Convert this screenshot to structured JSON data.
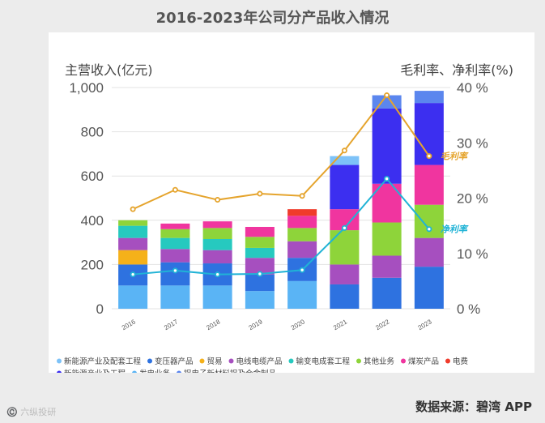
{
  "title": "2016-2023年公司分产品收入情况",
  "source": "数据来源：碧湾 APP",
  "watermark": "©️ 六纵投研",
  "chart_data": {
    "type": "bar",
    "stacked": true,
    "categories": [
      "2016",
      "2017",
      "2018",
      "2019",
      "2020",
      "2021",
      "2022",
      "2023"
    ],
    "left_axis": {
      "label": "主营收入(亿元)",
      "range": [
        0,
        1000
      ],
      "ticks": [
        "0",
        "200",
        "400",
        "600",
        "800",
        "1,000"
      ]
    },
    "right_axis": {
      "label": "毛利率、净利率(%)",
      "range": [
        0,
        40
      ],
      "ticks": [
        "0 %",
        "10 %",
        "20 %",
        "30 %",
        "40 %"
      ]
    },
    "series": [
      {
        "name": "发电业务",
        "color": "#5ab4f5",
        "values": [
          105,
          105,
          105,
          80,
          125,
          0,
          0,
          0
        ]
      },
      {
        "name": "变压器产品",
        "color": "#2e72e0",
        "values": [
          95,
          105,
          100,
          75,
          105,
          110,
          140,
          190
        ]
      },
      {
        "name": "贸易",
        "color": "#f5b11a",
        "values": [
          65,
          0,
          0,
          0,
          0,
          0,
          0,
          0
        ]
      },
      {
        "name": "电线电缆产品",
        "color": "#a64fbf",
        "values": [
          55,
          60,
          60,
          75,
          75,
          90,
          100,
          130
        ]
      },
      {
        "name": "输变电成套工程",
        "color": "#26c9bf",
        "values": [
          55,
          50,
          50,
          45,
          0,
          0,
          0,
          0
        ]
      },
      {
        "name": "其他业务",
        "color": "#8ed43a",
        "values": [
          25,
          40,
          50,
          50,
          60,
          155,
          150,
          150
        ]
      },
      {
        "name": "煤炭产品",
        "color": "#f0359f",
        "values": [
          0,
          25,
          30,
          45,
          55,
          95,
          175,
          180
        ]
      },
      {
        "name": "电费",
        "color": "#f03b2b",
        "values": [
          0,
          0,
          0,
          0,
          30,
          0,
          0,
          0
        ]
      },
      {
        "name": "新能源产业及工程",
        "color": "#3c2ff0",
        "values": [
          0,
          0,
          0,
          0,
          0,
          200,
          340,
          280
        ]
      },
      {
        "name": "新能源产业及配套工程",
        "color": "#7dc2f8",
        "values": [
          0,
          0,
          0,
          0,
          0,
          40,
          0,
          0
        ]
      },
      {
        "name": "铝电子新材料铝及合金制品",
        "color": "#5b86ee",
        "values": [
          0,
          0,
          0,
          0,
          0,
          0,
          60,
          55
        ]
      }
    ],
    "lines": [
      {
        "name": "毛利率",
        "color": "#e5a42d",
        "axis": "right",
        "values": [
          18,
          21.5,
          19.7,
          20.8,
          20.4,
          28.6,
          38.6,
          27.6
        ]
      },
      {
        "name": "净利率",
        "color": "#20b3d6",
        "axis": "right",
        "values": [
          6.2,
          6.9,
          6.2,
          6.3,
          7,
          14.6,
          23.5,
          14.4
        ]
      }
    ],
    "annotations": [
      {
        "text": "毛利率",
        "color": "#e5a42d"
      },
      {
        "text": "净利率",
        "color": "#20b3d6"
      }
    ],
    "legend": {
      "position": "bottom",
      "items": [
        {
          "name": "新能源产业及配套工程",
          "color": "#7dc2f8"
        },
        {
          "name": "变压器产品",
          "color": "#2e72e0"
        },
        {
          "name": "贸易",
          "color": "#f5b11a"
        },
        {
          "name": "电线电缆产品",
          "color": "#a64fbf"
        },
        {
          "name": "输变电成套工程",
          "color": "#26c9bf"
        },
        {
          "name": "其他业务",
          "color": "#8ed43a"
        },
        {
          "name": "煤炭产品",
          "color": "#f0359f"
        },
        {
          "name": "电费",
          "color": "#f03b2b"
        },
        {
          "name": "新能源产业及工程",
          "color": "#3c2ff0"
        },
        {
          "name": "发电业务",
          "color": "#5ab4f5"
        },
        {
          "name": "铝电子新材料铝及合金制品",
          "color": "#5b86ee"
        }
      ]
    }
  }
}
